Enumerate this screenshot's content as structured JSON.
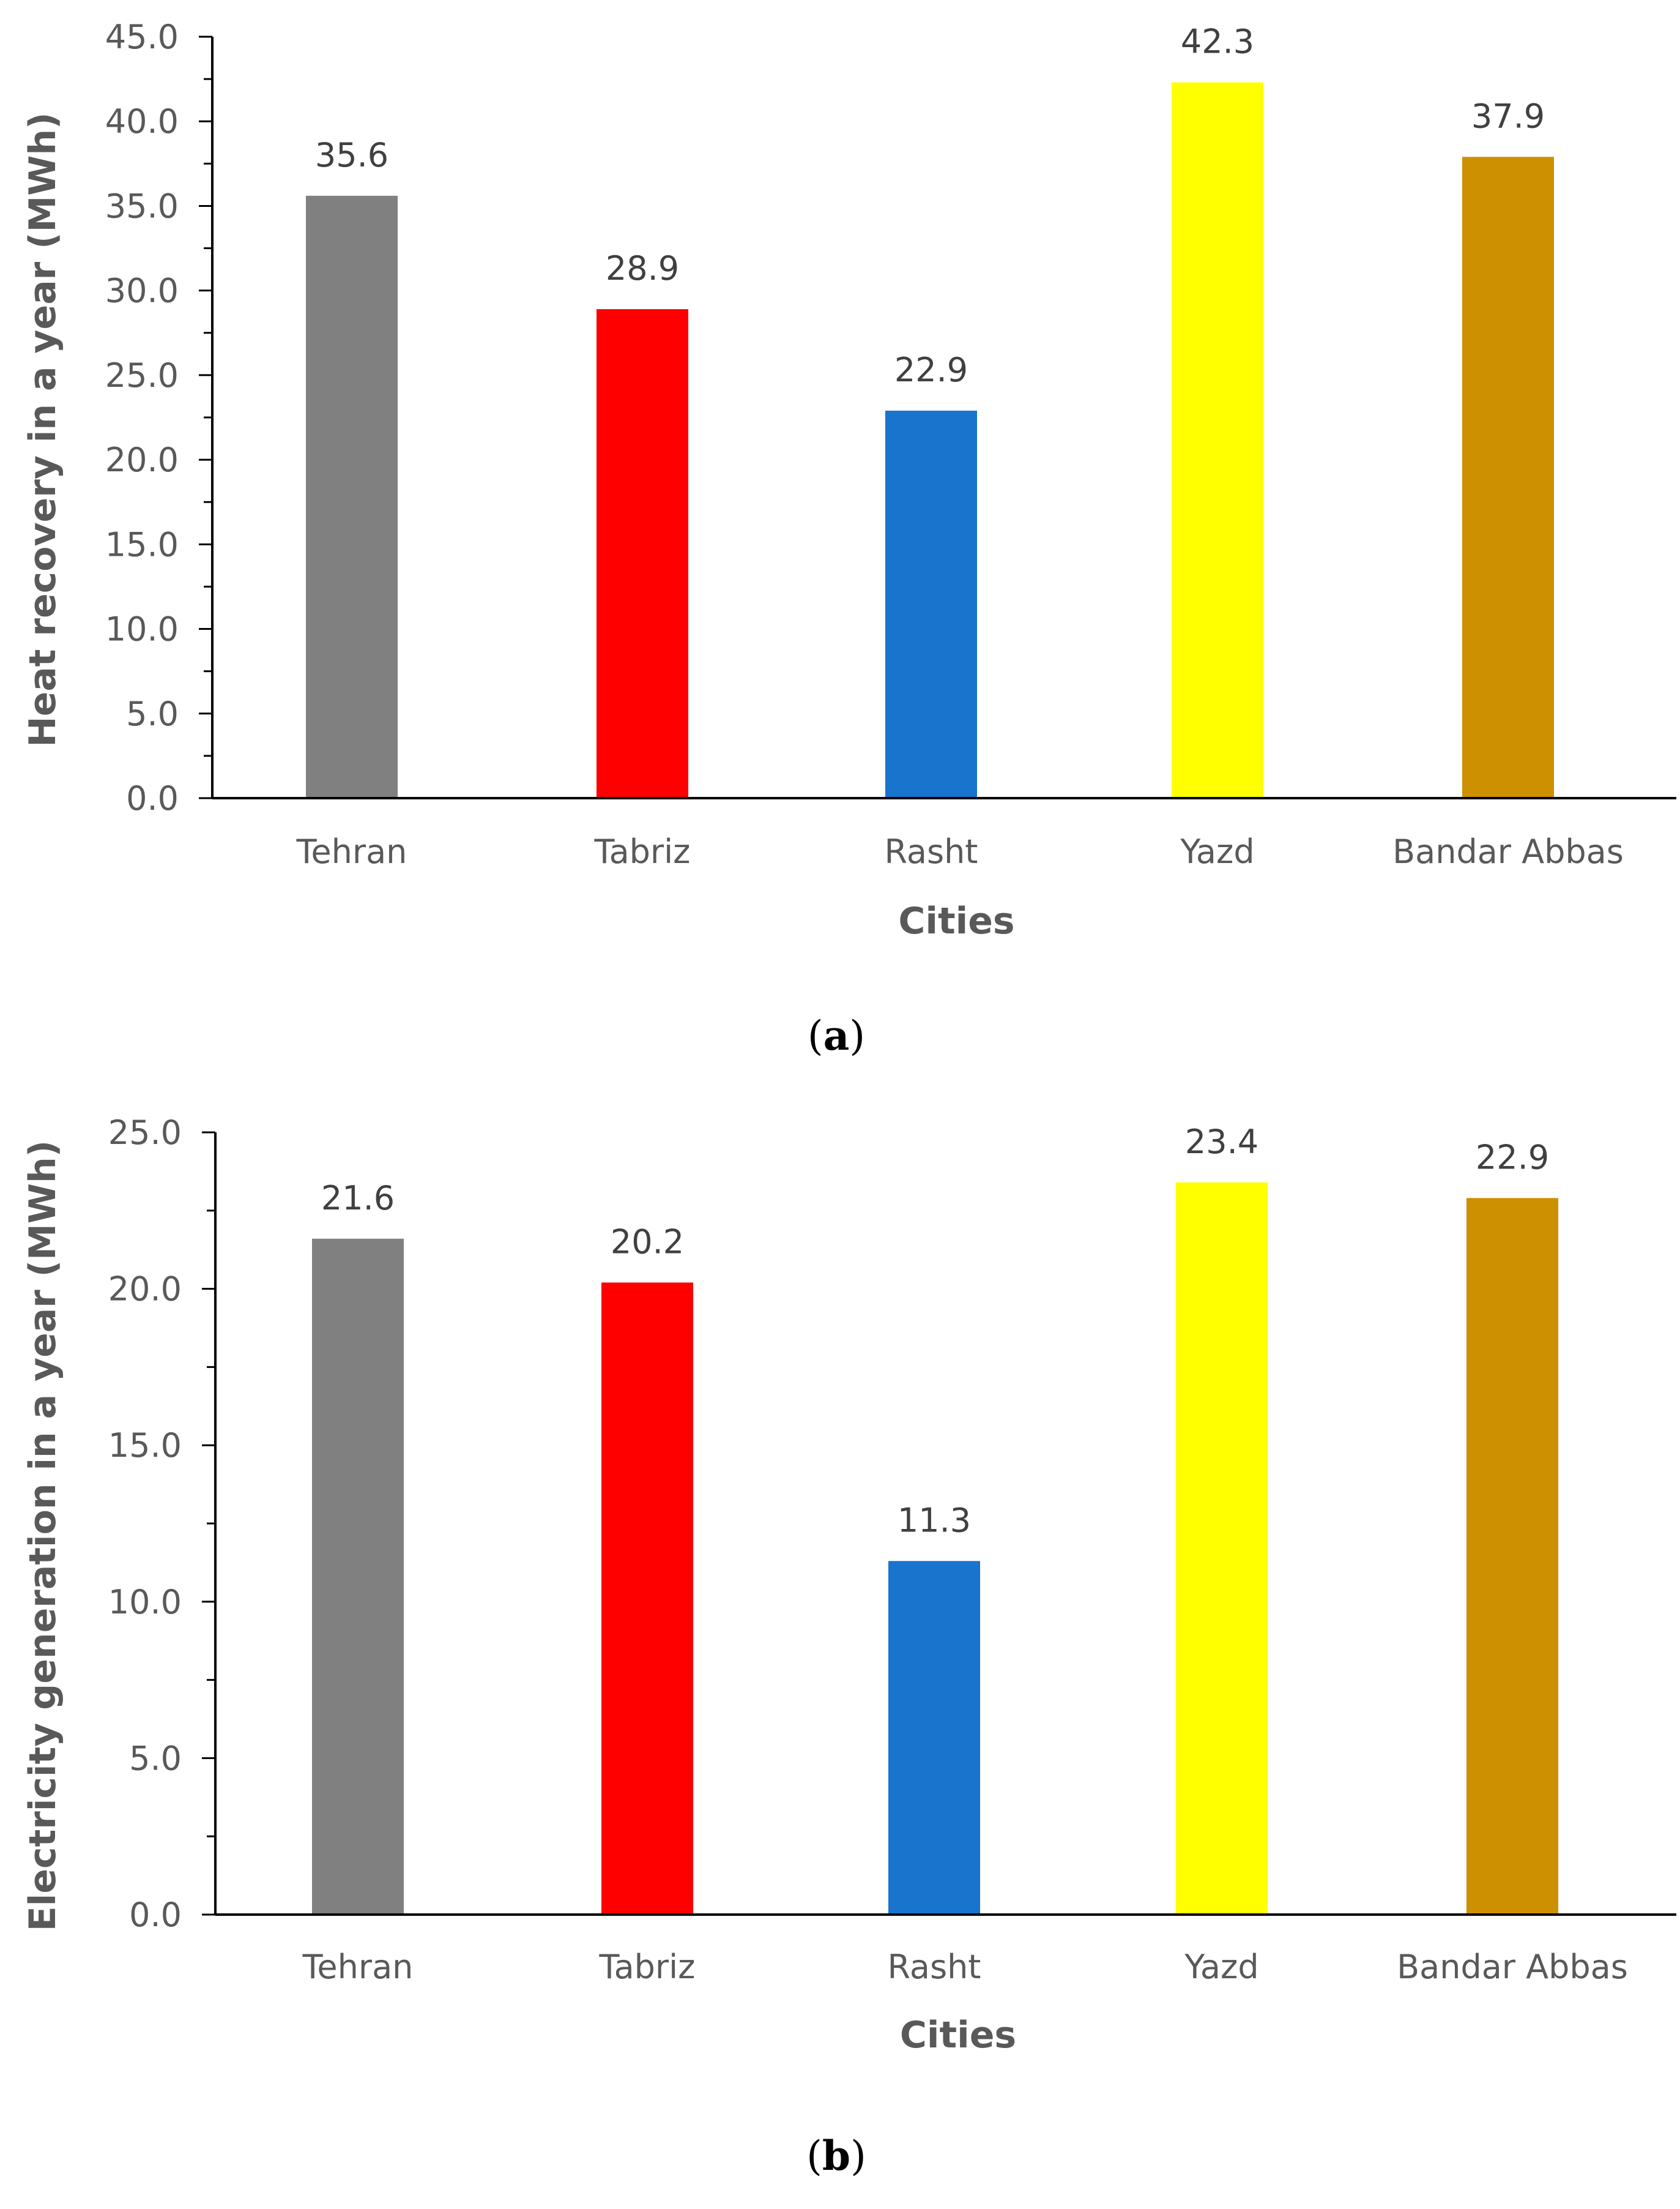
{
  "chart_data": [
    {
      "type": "bar",
      "panel_label": "a",
      "categories": [
        "Tehran",
        "Tabriz",
        "Rasht",
        "Yazd",
        "Bandar Abbas"
      ],
      "values": [
        35.6,
        28.9,
        22.9,
        42.3,
        37.9
      ],
      "data_labels": [
        "35.6",
        "28.9",
        "22.9",
        "42.3",
        "37.9"
      ],
      "colors": [
        "#808080",
        "#ff0000",
        "#1874cd",
        "#ffff00",
        "#cc9000"
      ],
      "xlabel": "Cities",
      "ylabel": "Heat recovery in a year (MWh)",
      "ylim": [
        0,
        45
      ],
      "yticks": [
        0,
        5,
        10,
        15,
        20,
        25,
        30,
        35,
        40,
        45
      ],
      "ytick_labels": [
        "0.0",
        "5.0",
        "10.0",
        "15.0",
        "20.0",
        "25.0",
        "30.0",
        "35.0",
        "40.0",
        "45.0"
      ],
      "grid": false
    },
    {
      "type": "bar",
      "panel_label": "b",
      "categories": [
        "Tehran",
        "Tabriz",
        "Rasht",
        "Yazd",
        "Bandar Abbas"
      ],
      "values": [
        21.6,
        20.2,
        11.3,
        23.4,
        22.9
      ],
      "data_labels": [
        "21.6",
        "20.2",
        "11.3",
        "23.4",
        "22.9"
      ],
      "colors": [
        "#808080",
        "#ff0000",
        "#1874cd",
        "#ffff00",
        "#cc9000"
      ],
      "xlabel": "Cities",
      "ylabel": "Electricity generation in a year (MWh)",
      "ylim": [
        0,
        25
      ],
      "yticks": [
        0,
        5,
        10,
        15,
        20,
        25
      ],
      "ytick_labels": [
        "0.0",
        "5.0",
        "10.0",
        "15.0",
        "20.0",
        "25.0"
      ],
      "grid": false
    }
  ]
}
